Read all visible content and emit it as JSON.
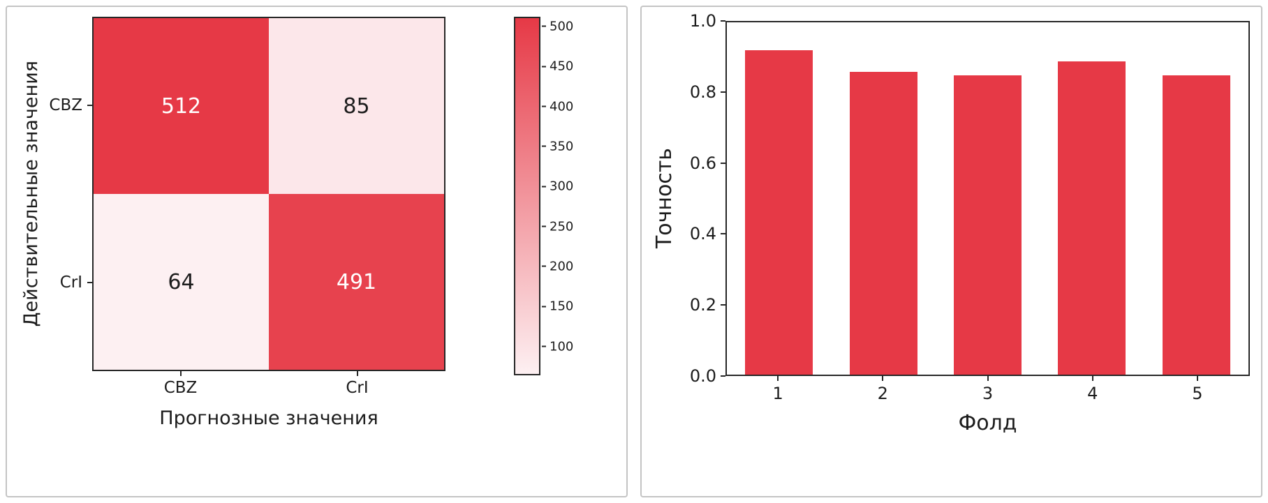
{
  "figure": {
    "background": "#ffffff",
    "panel_border_color": "#c4c4c4",
    "axis_color": "#262626",
    "accent_color": "#e63946"
  },
  "chart_data": [
    {
      "type": "heatmap",
      "title": "",
      "ylabel": "Действительные значения",
      "xlabel": "Прогнозные значения",
      "y_categories": [
        "CBZ",
        "CrI"
      ],
      "x_categories": [
        "CBZ",
        "CrI"
      ],
      "values": [
        [
          512,
          85
        ],
        [
          64,
          491
        ]
      ],
      "vmin": 64,
      "vmax": 512,
      "colormap_low": "#fdf0f2",
      "colormap_high": "#e63946",
      "colorbar_ticks": [
        100,
        150,
        200,
        250,
        300,
        350,
        400,
        450,
        500
      ],
      "colorbar_position": "right",
      "grid": false
    },
    {
      "type": "bar",
      "title": "",
      "categories": [
        "1",
        "2",
        "3",
        "4",
        "5"
      ],
      "values": [
        0.92,
        0.86,
        0.85,
        0.89,
        0.85
      ],
      "xlabel": "Фолд",
      "ylabel": "Точность",
      "ylim": [
        0.0,
        1.0
      ],
      "yticks": [
        0.0,
        0.2,
        0.4,
        0.6,
        0.8,
        1.0
      ],
      "bar_color": "#e63946",
      "legend": "none",
      "grid": false
    }
  ]
}
